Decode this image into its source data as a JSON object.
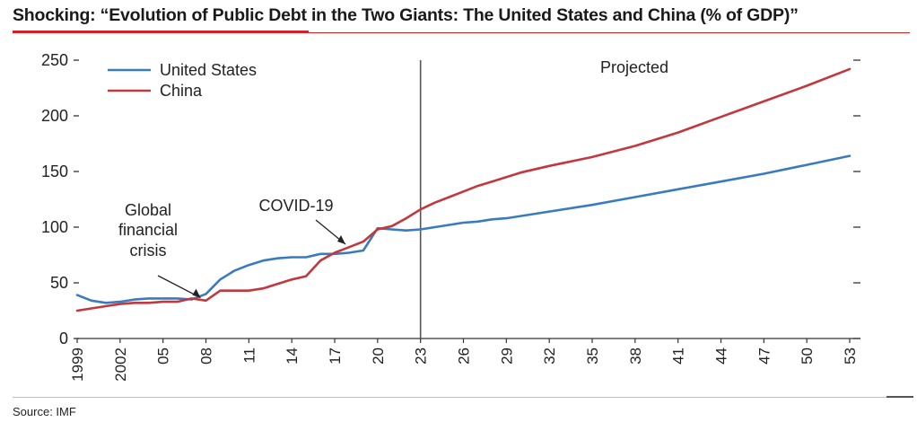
{
  "header": {
    "title": "Shocking: “Evolution of Public Debt in the Two Giants: The United States and China (% of GDP)”"
  },
  "footer": {
    "source": "Source: IMF"
  },
  "colors": {
    "us": "#3a7bbf",
    "china": "#c1383e",
    "accent": "#d91f26",
    "axis": "#333333"
  },
  "chart_data": {
    "type": "line",
    "title": "",
    "xlabel": "",
    "ylabel": "",
    "xlim": [
      1999,
      2053
    ],
    "ylim": [
      0,
      250
    ],
    "yticks": [
      0,
      50,
      100,
      150,
      200,
      250
    ],
    "xticks": [
      {
        "x": 1999,
        "label": "1999"
      },
      {
        "x": 2002,
        "label": "2002"
      },
      {
        "x": 2005,
        "label": "05"
      },
      {
        "x": 2008,
        "label": "08"
      },
      {
        "x": 2011,
        "label": "11"
      },
      {
        "x": 2014,
        "label": "14"
      },
      {
        "x": 2017,
        "label": "17"
      },
      {
        "x": 2020,
        "label": "20"
      },
      {
        "x": 2023,
        "label": "23"
      },
      {
        "x": 2026,
        "label": "26"
      },
      {
        "x": 2029,
        "label": "29"
      },
      {
        "x": 2032,
        "label": "32"
      },
      {
        "x": 2035,
        "label": "35"
      },
      {
        "x": 2038,
        "label": "38"
      },
      {
        "x": 2041,
        "label": "41"
      },
      {
        "x": 2044,
        "label": "44"
      },
      {
        "x": 2047,
        "label": "47"
      },
      {
        "x": 2050,
        "label": "50"
      },
      {
        "x": 2053,
        "label": "53"
      }
    ],
    "grid": false,
    "legend_position": "top-left",
    "projection_start": 2023,
    "projected_label": "Projected",
    "annotations": [
      {
        "text": [
          "Global",
          "financial",
          "crisis"
        ],
        "x": 2008,
        "y": 35
      },
      {
        "text": [
          "COVID-19"
        ],
        "x": 2020,
        "y": 90
      }
    ],
    "series": [
      {
        "name": "United States",
        "color": "#3a7bbf",
        "points": [
          [
            1999,
            39
          ],
          [
            2000,
            34
          ],
          [
            2001,
            32
          ],
          [
            2002,
            33
          ],
          [
            2003,
            35
          ],
          [
            2004,
            36
          ],
          [
            2005,
            36
          ],
          [
            2006,
            36
          ],
          [
            2007,
            35
          ],
          [
            2008,
            40
          ],
          [
            2009,
            53
          ],
          [
            2010,
            61
          ],
          [
            2011,
            66
          ],
          [
            2012,
            70
          ],
          [
            2013,
            72
          ],
          [
            2014,
            73
          ],
          [
            2015,
            73
          ],
          [
            2016,
            76
          ],
          [
            2017,
            76
          ],
          [
            2018,
            77
          ],
          [
            2019,
            79
          ],
          [
            2020,
            99
          ],
          [
            2021,
            98
          ],
          [
            2022,
            97
          ],
          [
            2023,
            98
          ],
          [
            2024,
            100
          ],
          [
            2025,
            102
          ],
          [
            2026,
            104
          ],
          [
            2027,
            105
          ],
          [
            2028,
            107
          ],
          [
            2029,
            108
          ],
          [
            2030,
            110
          ],
          [
            2032,
            114
          ],
          [
            2035,
            120
          ],
          [
            2038,
            127
          ],
          [
            2041,
            134
          ],
          [
            2044,
            141
          ],
          [
            2047,
            148
          ],
          [
            2050,
            156
          ],
          [
            2053,
            164
          ]
        ]
      },
      {
        "name": "China",
        "color": "#c1383e",
        "points": [
          [
            1999,
            25
          ],
          [
            2000,
            27
          ],
          [
            2001,
            29
          ],
          [
            2002,
            31
          ],
          [
            2003,
            32
          ],
          [
            2004,
            32
          ],
          [
            2005,
            33
          ],
          [
            2006,
            33
          ],
          [
            2007,
            36
          ],
          [
            2008,
            34
          ],
          [
            2009,
            43
          ],
          [
            2010,
            43
          ],
          [
            2011,
            43
          ],
          [
            2012,
            45
          ],
          [
            2013,
            49
          ],
          [
            2014,
            53
          ],
          [
            2015,
            56
          ],
          [
            2016,
            70
          ],
          [
            2017,
            77
          ],
          [
            2018,
            82
          ],
          [
            2019,
            87
          ],
          [
            2020,
            98
          ],
          [
            2021,
            101
          ],
          [
            2022,
            108
          ],
          [
            2023,
            116
          ],
          [
            2024,
            122
          ],
          [
            2025,
            127
          ],
          [
            2026,
            132
          ],
          [
            2027,
            137
          ],
          [
            2028,
            141
          ],
          [
            2029,
            145
          ],
          [
            2030,
            149
          ],
          [
            2032,
            155
          ],
          [
            2035,
            163
          ],
          [
            2038,
            173
          ],
          [
            2041,
            185
          ],
          [
            2044,
            199
          ],
          [
            2047,
            213
          ],
          [
            2050,
            227
          ],
          [
            2053,
            242
          ]
        ]
      }
    ]
  }
}
